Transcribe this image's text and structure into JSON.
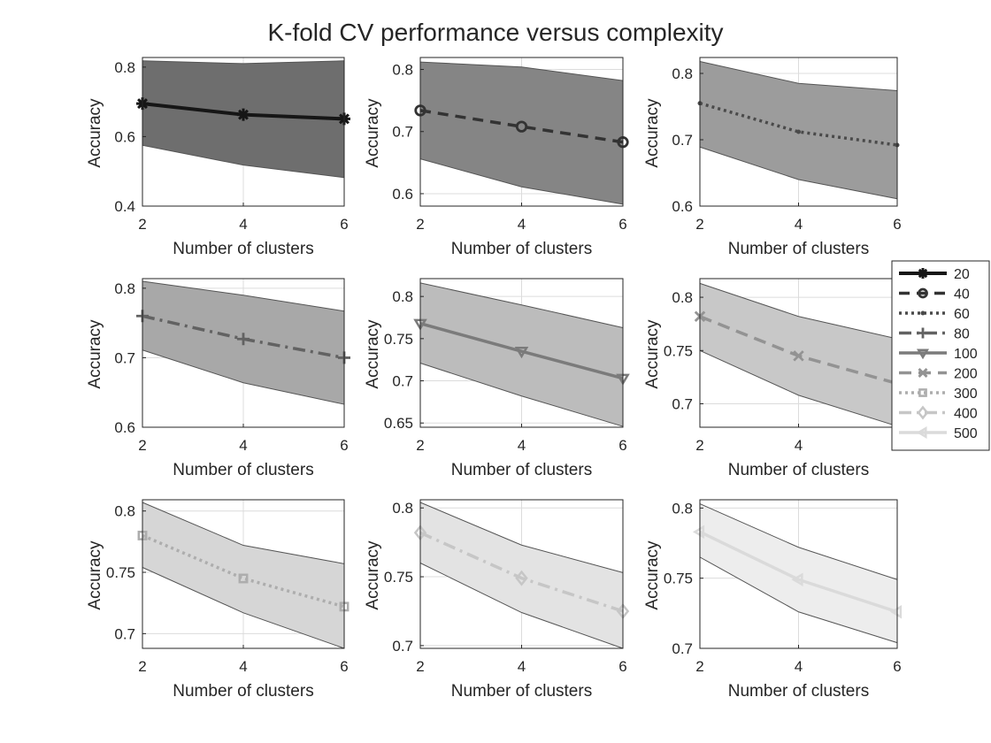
{
  "figure": {
    "title": "K-fold CV performance versus complexity"
  },
  "chart_data": [
    {
      "type": "line",
      "series_name": "20",
      "x": [
        2,
        4,
        6
      ],
      "y": [
        0.695,
        0.663,
        0.651
      ],
      "upper": [
        0.818,
        0.81,
        0.818
      ],
      "lower": [
        0.575,
        0.518,
        0.482
      ],
      "ylim": [
        0.4,
        0.82
      ],
      "yticks": [
        0.4,
        0.6,
        0.8
      ],
      "ytick_labels": [
        "0.4",
        "0.6",
        "0.8"
      ],
      "xlim": [
        2,
        6
      ],
      "xticks": [
        2,
        4,
        6
      ],
      "xtick_labels": [
        "2",
        "4",
        "6"
      ],
      "xlabel": "Number of clusters",
      "ylabel": "Accuracy",
      "fill_color": "#6e6e6e",
      "line_color": "#161616",
      "dash": "",
      "marker": "asterisk",
      "line_width": 4
    },
    {
      "type": "line",
      "series_name": "40",
      "x": [
        2,
        4,
        6
      ],
      "y": [
        0.734,
        0.708,
        0.683
      ],
      "upper": [
        0.812,
        0.804,
        0.782
      ],
      "lower": [
        0.656,
        0.611,
        0.583
      ],
      "ylim": [
        0.58,
        0.815
      ],
      "yticks": [
        0.6,
        0.7,
        0.8
      ],
      "ytick_labels": [
        "0.6",
        "0.7",
        "0.8"
      ],
      "xlim": [
        2,
        6
      ],
      "xticks": [
        2,
        4,
        6
      ],
      "xtick_labels": [
        "2",
        "4",
        "6"
      ],
      "xlabel": "Number of clusters",
      "ylabel": "Accuracy",
      "fill_color": "#858585",
      "line_color": "#333333",
      "dash": "12 8",
      "marker": "circle",
      "line_width": 3.5
    },
    {
      "type": "line",
      "series_name": "60",
      "x": [
        2,
        4,
        6
      ],
      "y": [
        0.755,
        0.712,
        0.692
      ],
      "upper": [
        0.818,
        0.785,
        0.774
      ],
      "lower": [
        0.689,
        0.64,
        0.611
      ],
      "ylim": [
        0.6,
        0.82
      ],
      "yticks": [
        0.6,
        0.7,
        0.8
      ],
      "ytick_labels": [
        "0.6",
        "0.7",
        "0.8"
      ],
      "xlim": [
        2,
        6
      ],
      "xticks": [
        2,
        4,
        6
      ],
      "xtick_labels": [
        "2",
        "4",
        "6"
      ],
      "xlabel": "Number of clusters",
      "ylabel": "Accuracy",
      "fill_color": "#9c9c9c",
      "line_color": "#4a4a4a",
      "dash": "3 4",
      "marker": "point",
      "line_width": 3.5
    },
    {
      "type": "line",
      "series_name": "80",
      "x": [
        2,
        4,
        6
      ],
      "y": [
        0.76,
        0.727,
        0.7
      ],
      "upper": [
        0.81,
        0.79,
        0.767
      ],
      "lower": [
        0.711,
        0.664,
        0.633
      ],
      "ylim": [
        0.6,
        0.81
      ],
      "yticks": [
        0.6,
        0.7,
        0.8
      ],
      "ytick_labels": [
        "0.6",
        "0.7",
        "0.8"
      ],
      "xlim": [
        2,
        6
      ],
      "xticks": [
        2,
        4,
        6
      ],
      "xtick_labels": [
        "2",
        "4",
        "6"
      ],
      "xlabel": "Number of clusters",
      "ylabel": "Accuracy",
      "fill_color": "#a8a8a8",
      "line_color": "#626262",
      "dash": "14 6 3 6",
      "marker": "plus",
      "line_width": 3.5
    },
    {
      "type": "line",
      "series_name": "100",
      "x": [
        2,
        4,
        6
      ],
      "y": [
        0.768,
        0.735,
        0.703
      ],
      "upper": [
        0.816,
        0.79,
        0.763
      ],
      "lower": [
        0.721,
        0.682,
        0.646
      ],
      "ylim": [
        0.645,
        0.818
      ],
      "yticks": [
        0.65,
        0.7,
        0.75,
        0.8
      ],
      "ytick_labels": [
        "0.65",
        "0.7",
        "0.75",
        "0.8"
      ],
      "xlim": [
        2,
        6
      ],
      "xticks": [
        2,
        4,
        6
      ],
      "xtick_labels": [
        "2",
        "4",
        "6"
      ],
      "xlabel": "Number of clusters",
      "ylabel": "Accuracy",
      "fill_color": "#bcbcbc",
      "line_color": "#7b7b7b",
      "dash": "",
      "marker": "triangle-down",
      "line_width": 3.5
    },
    {
      "type": "line",
      "series_name": "200",
      "x": [
        2,
        4,
        6
      ],
      "y": [
        0.782,
        0.745,
        0.719
      ],
      "upper": [
        0.813,
        0.782,
        0.761
      ],
      "lower": [
        0.75,
        0.708,
        0.679
      ],
      "ylim": [
        0.678,
        0.815
      ],
      "yticks": [
        0.7,
        0.75,
        0.8
      ],
      "ytick_labels": [
        "0.7",
        "0.75",
        "0.8"
      ],
      "xlim": [
        2,
        6
      ],
      "xticks": [
        2,
        4,
        6
      ],
      "xtick_labels": [
        "2",
        "4",
        "6"
      ],
      "xlabel": "Number of clusters",
      "ylabel": "Accuracy",
      "fill_color": "#c8c8c8",
      "line_color": "#939393",
      "dash": "14 8",
      "marker": "x",
      "line_width": 3.5
    },
    {
      "type": "line",
      "series_name": "300",
      "x": [
        2,
        4,
        6
      ],
      "y": [
        0.78,
        0.745,
        0.722
      ],
      "upper": [
        0.807,
        0.772,
        0.757
      ],
      "lower": [
        0.754,
        0.717,
        0.688
      ],
      "ylim": [
        0.688,
        0.807
      ],
      "yticks": [
        0.7,
        0.75,
        0.8
      ],
      "ytick_labels": [
        "0.7",
        "0.75",
        "0.8"
      ],
      "xlim": [
        2,
        6
      ],
      "xticks": [
        2,
        4,
        6
      ],
      "xtick_labels": [
        "2",
        "4",
        "6"
      ],
      "xlabel": "Number of clusters",
      "ylabel": "Accuracy",
      "fill_color": "#d6d6d6",
      "line_color": "#adadad",
      "dash": "3 4",
      "marker": "square",
      "line_width": 3.5
    },
    {
      "type": "line",
      "series_name": "400",
      "x": [
        2,
        4,
        6
      ],
      "y": [
        0.782,
        0.749,
        0.725
      ],
      "upper": [
        0.804,
        0.773,
        0.753
      ],
      "lower": [
        0.76,
        0.724,
        0.698
      ],
      "ylim": [
        0.698,
        0.804
      ],
      "yticks": [
        0.7,
        0.75,
        0.8
      ],
      "ytick_labels": [
        "0.7",
        "0.75",
        "0.8"
      ],
      "xlim": [
        2,
        6
      ],
      "xticks": [
        2,
        4,
        6
      ],
      "xtick_labels": [
        "2",
        "4",
        "6"
      ],
      "xlabel": "Number of clusters",
      "ylabel": "Accuracy",
      "fill_color": "#e3e3e3",
      "line_color": "#c6c6c6",
      "dash": "14 6 3 6",
      "marker": "diamond",
      "line_width": 3.5
    },
    {
      "type": "line",
      "series_name": "500",
      "x": [
        2,
        4,
        6
      ],
      "y": [
        0.783,
        0.749,
        0.726
      ],
      "upper": [
        0.803,
        0.772,
        0.749
      ],
      "lower": [
        0.765,
        0.726,
        0.704
      ],
      "ylim": [
        0.7,
        0.804
      ],
      "yticks": [
        0.7,
        0.75,
        0.8
      ],
      "ytick_labels": [
        "0.7",
        "0.75",
        "0.8"
      ],
      "xlim": [
        2,
        6
      ],
      "xticks": [
        2,
        4,
        6
      ],
      "xtick_labels": [
        "2",
        "4",
        "6"
      ],
      "xlabel": "Number of clusters",
      "ylabel": "Accuracy",
      "fill_color": "#ededed",
      "line_color": "#dadada",
      "dash": "",
      "marker": "triangle-left",
      "line_width": 3.5
    }
  ],
  "legend": {
    "placement": "right-middle",
    "entries": [
      {
        "label": "20",
        "series": 0
      },
      {
        "label": "40",
        "series": 1
      },
      {
        "label": "60",
        "series": 2
      },
      {
        "label": "80",
        "series": 3
      },
      {
        "label": "100",
        "series": 4
      },
      {
        "label": "200",
        "series": 5
      },
      {
        "label": "300",
        "series": 6
      },
      {
        "label": "400",
        "series": 7
      },
      {
        "label": "500",
        "series": 8
      }
    ]
  },
  "colors": {
    "axis": "#262626",
    "grid": "#dcdcdc",
    "band_edge": "#555555"
  }
}
